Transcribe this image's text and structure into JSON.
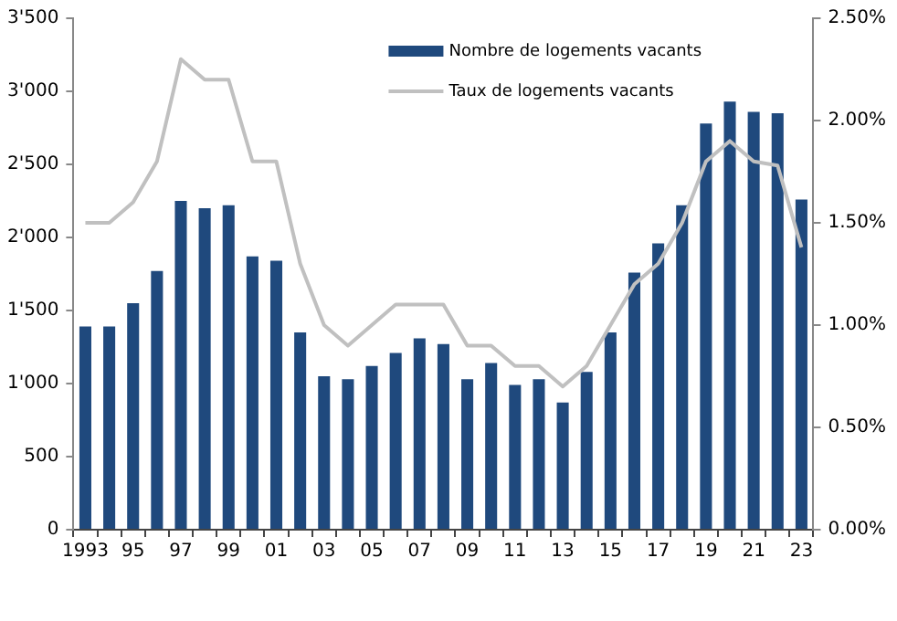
{
  "chart_data": {
    "type": "bar",
    "categories": [
      "1993",
      null,
      "95",
      null,
      "97",
      null,
      "99",
      null,
      "01",
      null,
      "03",
      null,
      "05",
      null,
      "07",
      null,
      "09",
      null,
      "11",
      null,
      "13",
      null,
      "15",
      null,
      "17",
      null,
      "19",
      null,
      "21",
      null,
      "23"
    ],
    "series": [
      {
        "name": "Nombre de logements vacants",
        "color": "#1f497d",
        "values": [
          1390,
          1390,
          1550,
          1770,
          2250,
          2200,
          2220,
          1870,
          1840,
          1350,
          1050,
          1030,
          1120,
          1210,
          1310,
          1270,
          1030,
          1140,
          990,
          1030,
          870,
          1080,
          1350,
          1760,
          1960,
          2220,
          2780,
          2930,
          2860,
          2850,
          2260
        ]
      },
      {
        "name": "Taux de logements vacants",
        "type": "line",
        "axis": "y2",
        "color": "#c0c0c0",
        "values": [
          1.5,
          1.5,
          1.6,
          1.8,
          2.3,
          2.2,
          2.2,
          1.8,
          1.8,
          1.3,
          1.0,
          0.9,
          1.0,
          1.1,
          1.1,
          1.1,
          0.9,
          0.9,
          0.8,
          0.8,
          0.7,
          0.8,
          1.0,
          1.2,
          1.3,
          1.5,
          1.8,
          1.9,
          1.8,
          1.78,
          1.38
        ]
      }
    ],
    "ylim": [
      0,
      3500
    ],
    "yticks": [
      0,
      500,
      {
        "value": 1000,
        "label": "1'000"
      },
      {
        "value": 1500,
        "label": "1'500"
      },
      {
        "value": 2000,
        "label": "2'000"
      },
      {
        "value": 2500,
        "label": "2'500"
      },
      {
        "value": 3000,
        "label": "3'000"
      },
      {
        "value": 3500,
        "label": "3'500"
      }
    ],
    "y2lim": [
      0,
      2.5
    ],
    "y2ticks": [
      {
        "value": 0,
        "label": "0.00%"
      },
      {
        "value": 0.5,
        "label": "0.50%"
      },
      {
        "value": 1,
        "label": "1.00%"
      },
      {
        "value": 1.5,
        "label": "1.50%"
      },
      {
        "value": 2,
        "label": "2.00%"
      },
      {
        "value": 2.5,
        "label": "2.50%"
      }
    ],
    "grid": false,
    "legend": "top",
    "marker": "none",
    "line_style": "solid"
  }
}
